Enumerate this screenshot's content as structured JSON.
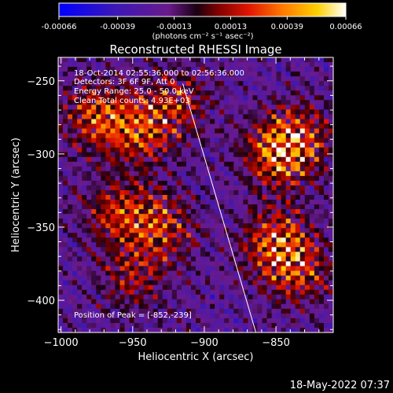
{
  "colorbar": {
    "ticks": [
      "-0.00066",
      "-0.00039",
      "-0.00013",
      "0.00013",
      "0.00039",
      "0.00066"
    ],
    "min": -0.00066,
    "max": 0.00066,
    "unit_label": "(photons cm⁻² s⁻¹ asec⁻²)"
  },
  "plot": {
    "title": "Reconstructed RHESSI Image",
    "overlay": {
      "time": "18-Oct-2014 02:55:36.000 to 02:56:36.000",
      "detectors": "Detectors: 3F 6F 9F, Att 0",
      "energy": "Energy Range: 25.0 - 50.0 keV",
      "clean": "Clean     Total counts: 4.93E+03",
      "peak": "Position of Peak = [-852,-239]"
    }
  },
  "chart_data": {
    "type": "heatmap",
    "title": "Reconstructed RHESSI Image",
    "xlabel": "Heliocentric X (arcsec)",
    "ylabel": "Heliocentric Y (arcsec)",
    "xlim": [
      -1002,
      -810
    ],
    "ylim": [
      -422,
      -234
    ],
    "x_ticks": [
      -1000,
      -950,
      -900,
      -850
    ],
    "y_ticks": [
      -250,
      -300,
      -350,
      -400
    ],
    "x_tick_labels": [
      "−1000",
      "−950",
      "−900",
      "−850"
    ],
    "y_tick_labels": [
      "−250",
      "−300",
      "−350",
      "−400"
    ],
    "colormap": "rainbow-hot: blue-purple (negative) to red-yellow-white (positive)",
    "limb_line": {
      "x": [
        -915,
        -864
      ],
      "y": [
        -252,
        -422
      ]
    },
    "peak": {
      "x": -852,
      "y": -239
    },
    "bright_regions": [
      {
        "x": -975,
        "y": -275,
        "intensity": 0.9
      },
      {
        "x": -945,
        "y": -285,
        "intensity": 0.85
      },
      {
        "x": -920,
        "y": -265,
        "intensity": 0.65
      },
      {
        "x": -850,
        "y": -300,
        "intensity": 0.95
      },
      {
        "x": -835,
        "y": -290,
        "intensity": 0.8
      },
      {
        "x": -850,
        "y": -360,
        "intensity": 0.95
      },
      {
        "x": -835,
        "y": -380,
        "intensity": 0.75
      },
      {
        "x": -960,
        "y": -340,
        "intensity": 0.8
      },
      {
        "x": -930,
        "y": -350,
        "intensity": 0.75
      },
      {
        "x": -950,
        "y": -385,
        "intensity": 0.55
      }
    ]
  },
  "timestamp": "18-May-2022 07:37",
  "colors": {
    "background": "#000000",
    "text": "#ffffff"
  }
}
